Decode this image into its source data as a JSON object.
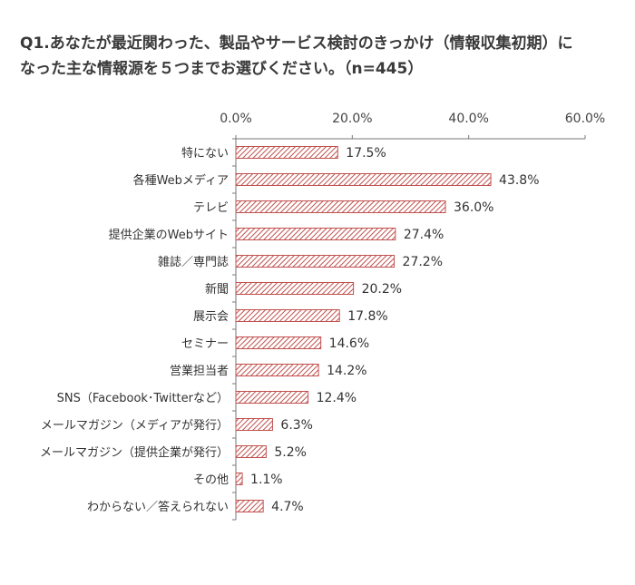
{
  "title_line1": "Q1.あなたが最近関わった、製品やサービス検討のきっかけ（情報収集初期）に",
  "title_line2": "なった主な情報源を５つまでお選びください。（n=445）",
  "chart_data": {
    "type": "bar",
    "orientation": "horizontal",
    "categories": [
      "特にない",
      "各種Webメディア",
      "テレビ",
      "提供企業のWebサイト",
      "雑誌／専門誌",
      "新聞",
      "展示会",
      "セミナー",
      "営業担当者",
      "SNS（Facebook･Twitterなど）",
      "メールマガジン（メディアが発行）",
      "メールマガジン（提供企業が発行）",
      "その他",
      "わからない／答えられない"
    ],
    "values": [
      17.5,
      43.8,
      36.0,
      27.4,
      27.2,
      20.2,
      17.8,
      14.6,
      14.2,
      12.4,
      6.3,
      5.2,
      1.1,
      4.7
    ],
    "value_labels": [
      "17.5%",
      "43.8%",
      "36.0%",
      "27.4%",
      "27.2%",
      "20.2%",
      "17.8%",
      "14.6%",
      "14.2%",
      "12.4%",
      "6.3%",
      "5.2%",
      "1.1%",
      "4.7%"
    ],
    "xlim": [
      0,
      60
    ],
    "ticks": [
      "0.0%",
      "20.0%",
      "40.0%",
      "60.0%"
    ],
    "tick_values": [
      0,
      20,
      40,
      60
    ],
    "axis_position": "top",
    "grid": false,
    "bar_color": "#c0504d",
    "bar_fill": "diagonal-hatch"
  }
}
